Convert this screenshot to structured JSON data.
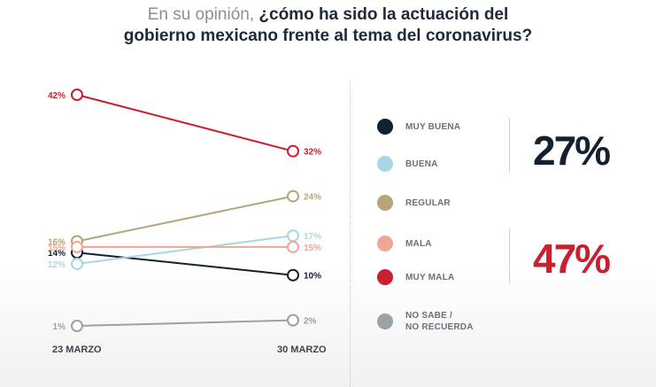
{
  "title": {
    "prefix": "En su opinión,",
    "line1_bold": "¿cómo ha sido la actuación del",
    "line2_bold": "gobierno mexicano frente al tema del coronavirus?"
  },
  "chart_data": {
    "type": "line",
    "x": [
      "23 MARZO",
      "30 MARZO"
    ],
    "ylim": [
      0,
      45
    ],
    "grid": false,
    "series": [
      {
        "name": "MUY BUENA",
        "values": [
          14,
          10
        ],
        "labels": [
          "14%",
          "10%"
        ],
        "color": "#13202e"
      },
      {
        "name": "BUENA",
        "values": [
          12,
          17
        ],
        "labels": [
          "12%",
          "17%"
        ],
        "color": "#a9d6e3"
      },
      {
        "name": "REGULAR",
        "values": [
          16,
          24
        ],
        "labels": [
          "16%",
          "24%"
        ],
        "color": "#b6a578"
      },
      {
        "name": "MALA",
        "values": [
          15,
          15
        ],
        "labels": [
          "15%",
          "15%"
        ],
        "color": "#f0a697"
      },
      {
        "name": "MUY MALA",
        "values": [
          42,
          32
        ],
        "labels": [
          "42%",
          "32%"
        ],
        "color": "#c8202f"
      },
      {
        "name": "NO SABE / NO RECUERDA",
        "values": [
          1,
          2
        ],
        "labels": [
          "1%",
          "2%"
        ],
        "color": "#9aa1a9"
      }
    ]
  },
  "legend": {
    "items": [
      {
        "line1": "MUY BUENA",
        "color": "#13202e"
      },
      {
        "line1": "BUENA",
        "color": "#a9d6e3"
      },
      {
        "line1": "REGULAR",
        "color": "#b6a578"
      },
      {
        "line1": "MALA",
        "color": "#f0a697"
      },
      {
        "line1": "MUY MALA",
        "color": "#c8202f"
      },
      {
        "line1": "NO SABE /",
        "line2": "NO RECUERDA",
        "color": "#9aa1a9"
      }
    ]
  },
  "summary": {
    "positive": {
      "value": "27%",
      "color": "#13202e"
    },
    "negative": {
      "value": "47%",
      "color": "#c8202f"
    }
  }
}
